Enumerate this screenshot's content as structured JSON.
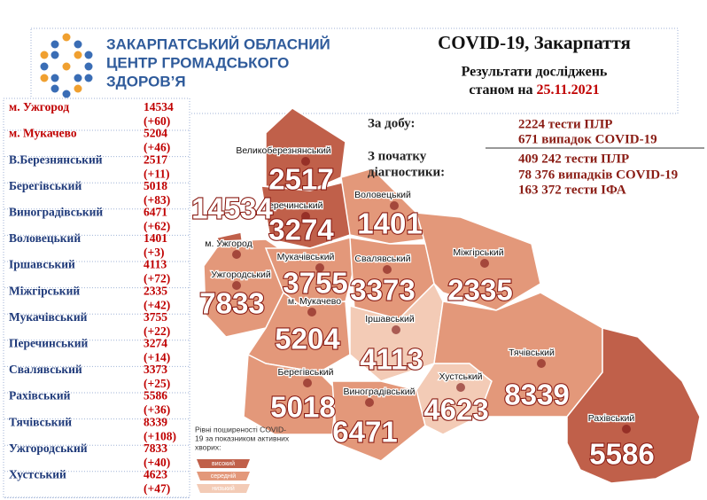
{
  "header": {
    "org": [
      "ЗАКАРПАТСЬКИЙ ОБЛАСНИЙ",
      "ЦЕНТР ГРОМАДСЬКОГО",
      "ЗДОРОВ’Я"
    ],
    "title": "COVID-19, Закарпаття",
    "subtitle": "Результати досліджень",
    "date_prefix": "станом на",
    "date": "25.11.2021"
  },
  "stats": {
    "day_label": "За добу:",
    "day_lines": [
      "2224 тести ПЛР",
      "671 випадок COVID-19"
    ],
    "total_label": [
      "З початку",
      "діагностики:"
    ],
    "total_lines": [
      "409 242 тести ПЛР",
      "78 376 випадків COVID-19",
      "163 372 тести ІФА"
    ]
  },
  "table": {
    "rows": [
      [
        "м. Ужгород",
        "14534",
        "(+60)"
      ],
      [
        "м. Мукачево",
        "5204",
        "(+46)"
      ],
      [
        "В.Березнянський",
        "2517",
        "(+11)"
      ],
      [
        "Берегівський",
        "5018",
        "(+83)"
      ],
      [
        "Виноградівський",
        "6471",
        "(+62)"
      ],
      [
        "Воловецький",
        "1401",
        "(+3)"
      ],
      [
        "Іршавський",
        "4113",
        "(+72)"
      ],
      [
        "Міжгірський",
        "2335",
        "(+42)"
      ],
      [
        "Мукачівський",
        "3755",
        "(+22)"
      ],
      [
        "Перечинський",
        "3274",
        "(+14)"
      ],
      [
        "Свалявський",
        "3373",
        "(+25)"
      ],
      [
        "Рахівський",
        "5586",
        "(+36)"
      ],
      [
        "Тячівський",
        "8339",
        "(+108)"
      ],
      [
        "Ужгородський",
        "7833",
        "(+40)"
      ],
      [
        "Хустський",
        "4623",
        "(+47)"
      ]
    ]
  },
  "map": {
    "regions": [
      {
        "label": "Великоберезнянський",
        "value": "2517"
      },
      {
        "label": "Перечинський",
        "value": "3274"
      },
      {
        "label": "Воловецький",
        "value": "1401"
      },
      {
        "label": "м. Ужгород",
        "value": "14534"
      },
      {
        "label": "Ужгородський",
        "value": "7833"
      },
      {
        "label": "Мукачівський",
        "value": "3755"
      },
      {
        "label": "Свалявський",
        "value": "3373"
      },
      {
        "label": "Міжгірський",
        "value": "2335"
      },
      {
        "label": "м. Мукачево",
        "value": "5204"
      },
      {
        "label": "Іршавський",
        "value": "4113"
      },
      {
        "label": "Берегівський",
        "value": "5018"
      },
      {
        "label": "Виноградівський",
        "value": "6471"
      },
      {
        "label": "Хустський",
        "value": "4623"
      },
      {
        "label": "Тячівський",
        "value": "8339"
      },
      {
        "label": "Рахівський",
        "value": "5586"
      }
    ]
  },
  "legend": {
    "title": [
      "Рівні поширеності COVID-",
      "19 за показником  активних",
      "хворих:"
    ],
    "items": [
      "високий",
      "середній",
      "низький"
    ]
  }
}
